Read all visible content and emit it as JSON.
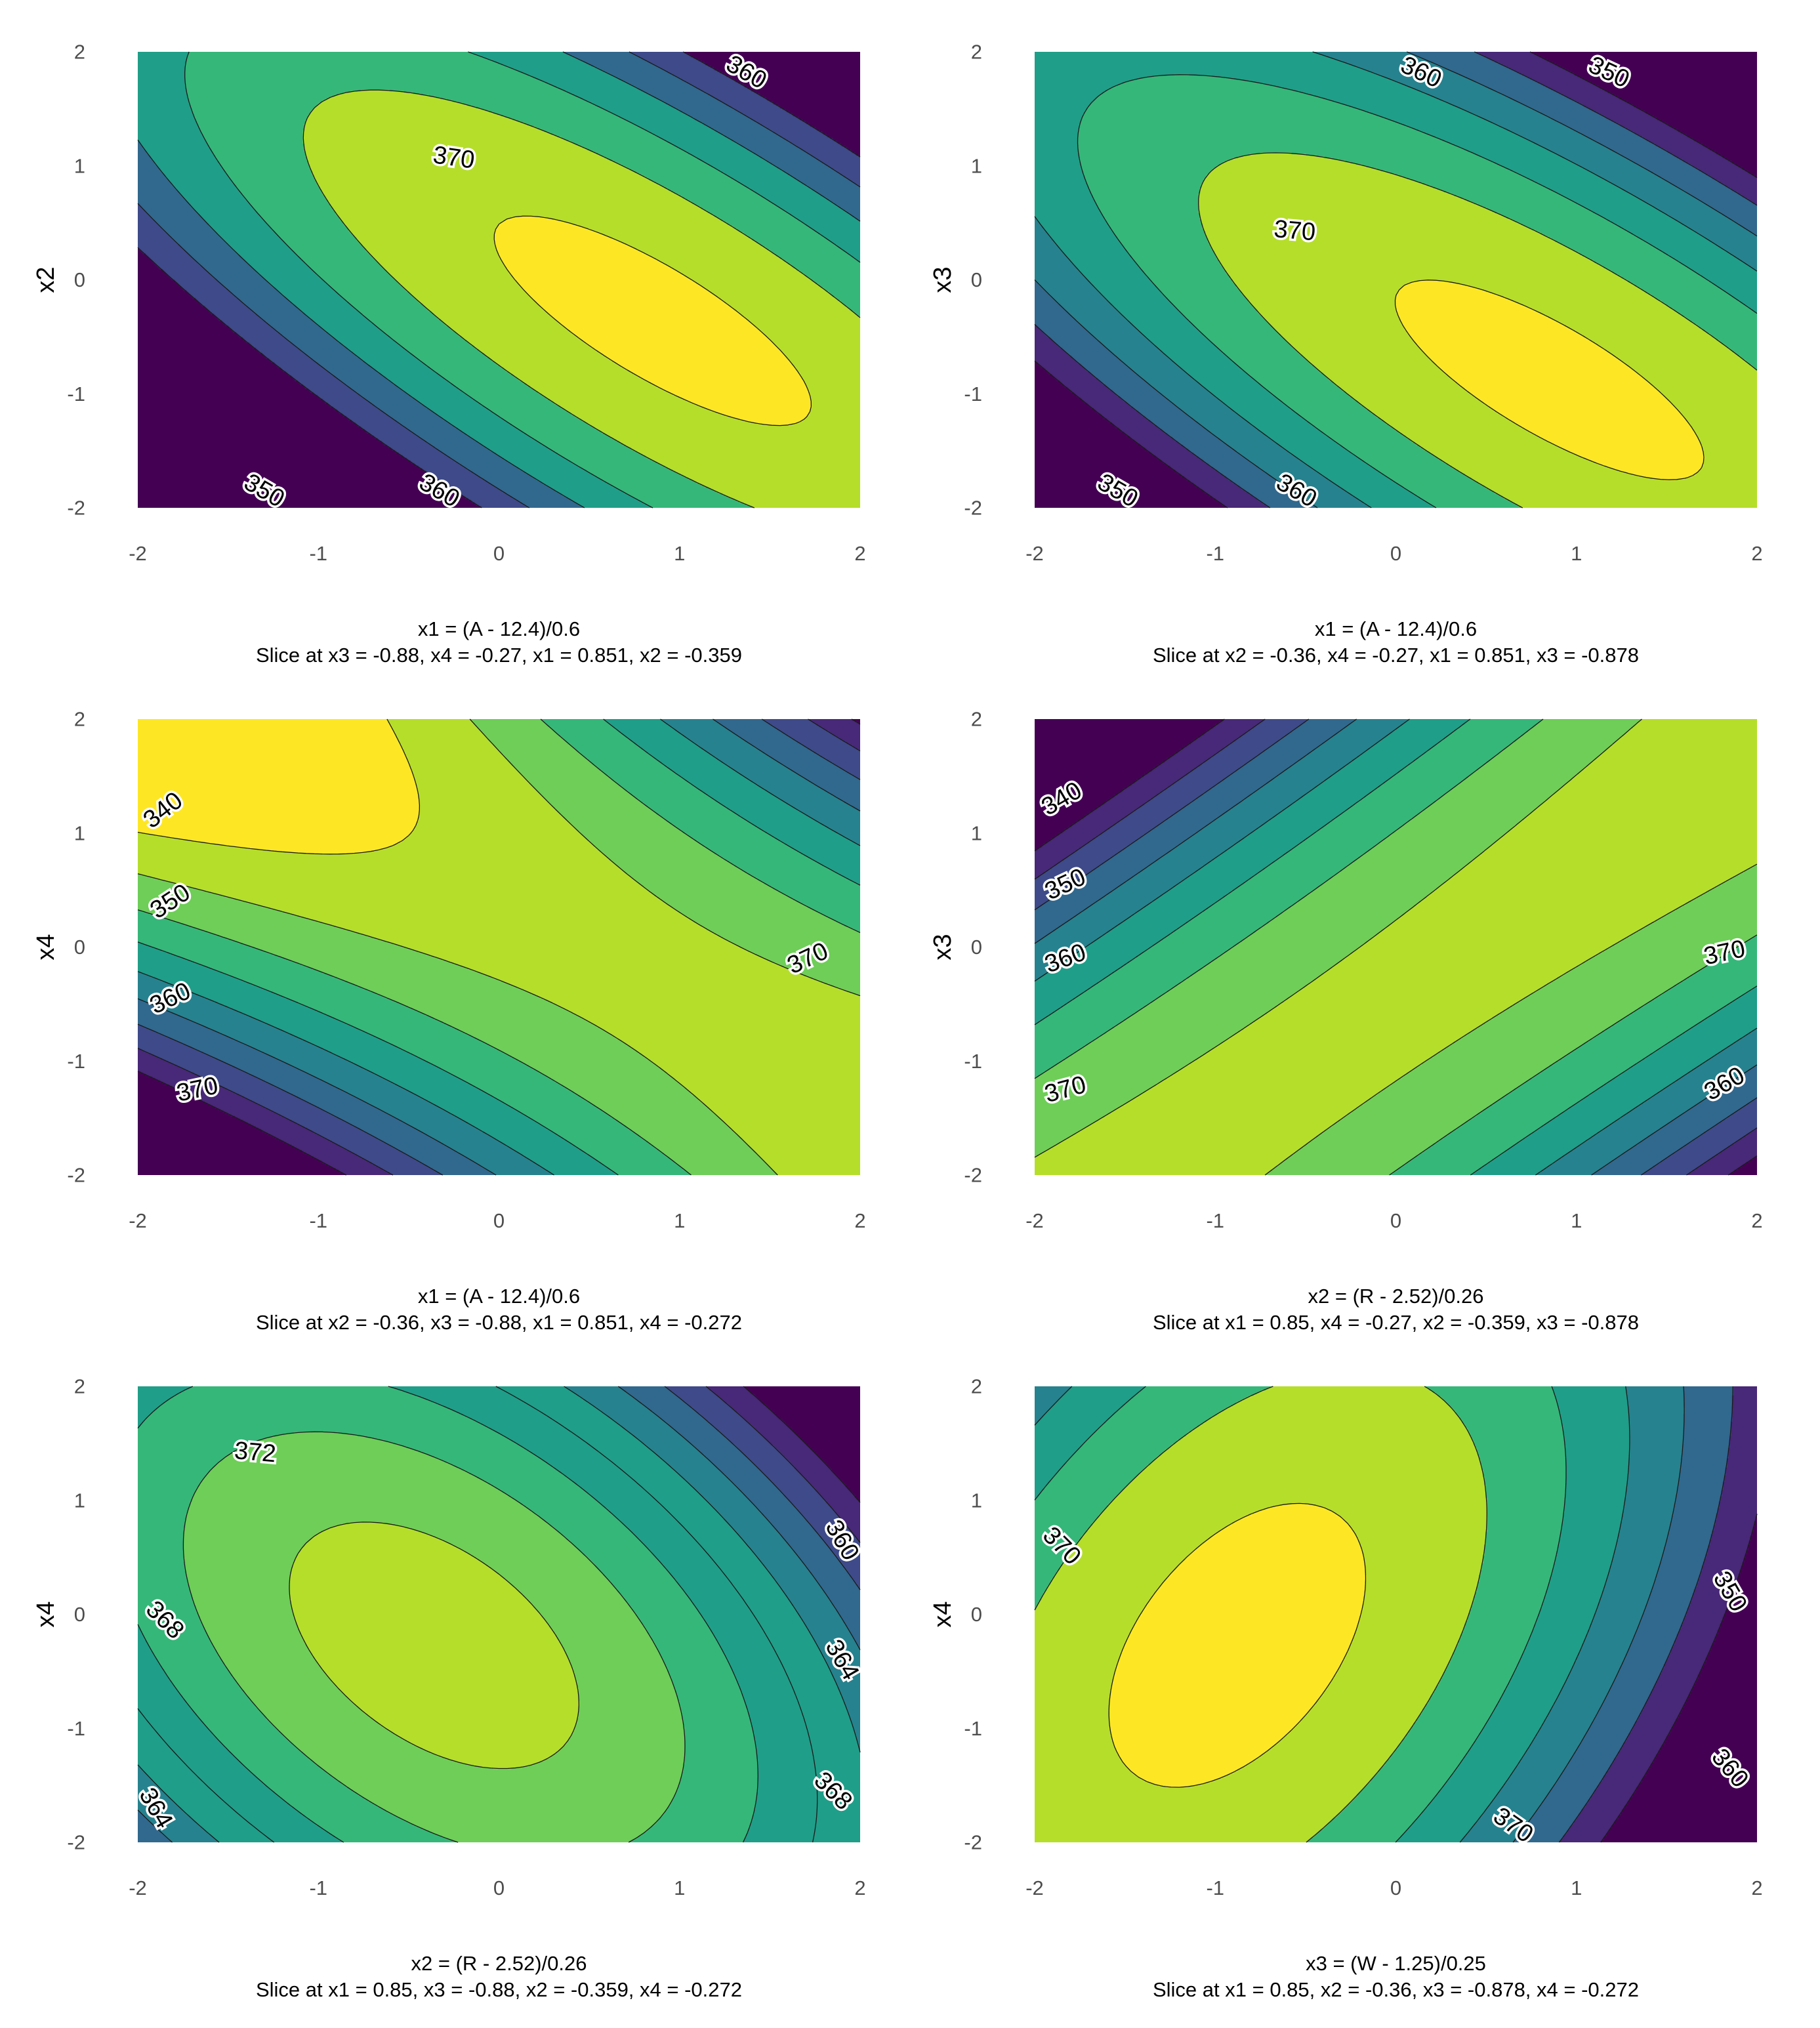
{
  "chart_data": [
    {
      "type": "contour",
      "xlabel": "x1 = (A - 12.4)/0.6",
      "ylabel": "x2",
      "subtitle": "Slice at x3 = -0.88, x4 = -0.27, x1 = 0.851, x2 = -0.359",
      "xlim": [
        -2,
        2
      ],
      "ylim": [
        -2,
        2
      ],
      "xticks": [
        "-2",
        "-1",
        "0",
        "1",
        "2"
      ],
      "yticks": [
        "-2",
        "-1",
        "0",
        "1",
        "2"
      ],
      "levels": [
        345,
        350,
        355,
        360,
        365,
        370
      ],
      "level_labels": [
        {
          "text": "370",
          "x": -0.25,
          "y": 1.07,
          "angle": 8
        },
        {
          "text": "360",
          "x": 1.37,
          "y": 1.82,
          "angle": 30
        },
        {
          "text": "350",
          "x": -1.3,
          "y": -1.85,
          "angle": 30
        },
        {
          "text": "360",
          "x": -0.33,
          "y": -1.85,
          "angle": 30
        }
      ],
      "model": {
        "c": 371.3,
        "lx": 0.0,
        "ly": 0.0,
        "qxx": -4.6,
        "qyy": -4.2,
        "qxy": -7.0,
        "cx": 0.851,
        "cy": -0.359
      }
    },
    {
      "type": "contour",
      "xlabel": "x1 = (A - 12.4)/0.6",
      "ylabel": "x3",
      "subtitle": "Slice at x2 = -0.36, x4 = -0.27, x1 = 0.851, x3 = -0.878",
      "xlim": [
        -2,
        2
      ],
      "ylim": [
        -2,
        2
      ],
      "xticks": [
        "-2",
        "-1",
        "0",
        "1",
        "2"
      ],
      "yticks": [
        "-2",
        "-1",
        "0",
        "1",
        "2"
      ],
      "levels": [
        340,
        345,
        350,
        355,
        360,
        365,
        370
      ],
      "level_labels": [
        {
          "text": "370",
          "x": -0.56,
          "y": 0.43,
          "angle": 5
        },
        {
          "text": "360",
          "x": 0.14,
          "y": 1.82,
          "angle": 25
        },
        {
          "text": "350",
          "x": 1.18,
          "y": 1.82,
          "angle": 25
        },
        {
          "text": "350",
          "x": -1.54,
          "y": -1.85,
          "angle": 30
        },
        {
          "text": "360",
          "x": -0.55,
          "y": -1.85,
          "angle": 30
        }
      ],
      "model": {
        "c": 371.2,
        "lx": 0.0,
        "ly": 0.0,
        "qxx": -4.2,
        "qyy": -4.0,
        "qxy": -6.4,
        "cx": 0.851,
        "cy": -0.878
      }
    },
    {
      "type": "contour",
      "xlabel": "x1 = (A - 12.4)/0.6",
      "ylabel": "x4",
      "subtitle": "Slice at x2 = -0.36, x3 = -0.88, x1 = 0.851, x4 = -0.272",
      "xlim": [
        -2,
        2
      ],
      "ylim": [
        -2,
        2
      ],
      "xticks": [
        "-2",
        "-1",
        "0",
        "1",
        "2"
      ],
      "yticks": [
        "-2",
        "-1",
        "0",
        "1",
        "2"
      ],
      "levels": [
        335,
        340,
        345,
        350,
        355,
        360,
        365,
        370,
        375
      ],
      "level_labels": [
        {
          "text": "340",
          "x": -1.86,
          "y": 1.2,
          "angle": -38
        },
        {
          "text": "350",
          "x": -1.82,
          "y": 0.4,
          "angle": -33
        },
        {
          "text": "360",
          "x": -1.82,
          "y": -0.45,
          "angle": -25
        },
        {
          "text": "370",
          "x": -1.67,
          "y": -1.25,
          "angle": -12
        },
        {
          "text": "370",
          "x": 1.71,
          "y": -0.1,
          "angle": -25
        }
      ],
      "model": {
        "c": 371.7,
        "lx": 0.0,
        "ly": 0.0,
        "qxx": -2.2,
        "qyy": -3.1,
        "qxy": -7.2,
        "cx": 0.851,
        "cy": -0.272
      }
    },
    {
      "type": "contour",
      "xlabel": "x2 = (R - 2.52)/0.26",
      "ylabel": "x3",
      "subtitle": "Slice at x1 = 0.85, x4 = -0.27, x2 = -0.359, x3 = -0.878",
      "xlim": [
        -2,
        2
      ],
      "ylim": [
        -2,
        2
      ],
      "xticks": [
        "-2",
        "-1",
        "0",
        "1",
        "2"
      ],
      "yticks": [
        "-2",
        "-1",
        "0",
        "1",
        "2"
      ],
      "levels": [
        335,
        340,
        345,
        350,
        355,
        360,
        365,
        370,
        375
      ],
      "level_labels": [
        {
          "text": "340",
          "x": -1.85,
          "y": 1.3,
          "angle": -30
        },
        {
          "text": "350",
          "x": -1.83,
          "y": 0.55,
          "angle": -25
        },
        {
          "text": "360",
          "x": -1.83,
          "y": -0.1,
          "angle": -20
        },
        {
          "text": "370",
          "x": -1.83,
          "y": -1.25,
          "angle": -15
        },
        {
          "text": "370",
          "x": 1.82,
          "y": -0.05,
          "angle": -12
        },
        {
          "text": "360",
          "x": 1.82,
          "y": -1.2,
          "angle": -30
        }
      ],
      "model": {
        "c": 371.4,
        "lx": 0.0,
        "ly": 0.0,
        "qxx": -3.4,
        "qyy": -2.9,
        "qxy": 6.6,
        "cx": -0.359,
        "cy": -0.878
      }
    },
    {
      "type": "contour",
      "xlabel": "x2 = (R - 2.52)/0.26",
      "ylabel": "x4",
      "subtitle": "Slice at x1 = 0.85, x3 = -0.88, x2 = -0.359, x4 = -0.272",
      "xlim": [
        -2,
        2
      ],
      "ylim": [
        -2,
        2
      ],
      "xticks": [
        "-2",
        "-1",
        "0",
        "1",
        "2"
      ],
      "yticks": [
        "-2",
        "-1",
        "0",
        "1",
        "2"
      ],
      "levels": [
        354,
        356,
        358,
        360,
        362,
        364,
        366,
        368,
        370,
        372
      ],
      "level_labels": [
        {
          "text": "372",
          "x": -1.35,
          "y": 1.42,
          "angle": 5
        },
        {
          "text": "360",
          "x": 1.9,
          "y": 0.65,
          "angle": 60
        },
        {
          "text": "364",
          "x": 1.9,
          "y": -0.4,
          "angle": 60
        },
        {
          "text": "368",
          "x": 1.85,
          "y": -1.55,
          "angle": 45
        },
        {
          "text": "368",
          "x": -1.85,
          "y": -0.05,
          "angle": 45
        },
        {
          "text": "364",
          "x": -1.9,
          "y": -1.7,
          "angle": 60
        }
      ],
      "model": {
        "c": 371.0,
        "lx": 0.0,
        "ly": 0.0,
        "qxx": -2.0,
        "qyy": -1.1,
        "qxy": -1.4,
        "cx": -0.359,
        "cy": -0.272
      }
    },
    {
      "type": "contour",
      "xlabel": "x3 = (W - 1.25)/0.25",
      "ylabel": "x4",
      "subtitle": "Slice at x1 = 0.85, x2 = -0.36, x3 = -0.878, x4 = -0.272",
      "xlim": [
        -2,
        2
      ],
      "ylim": [
        -2,
        2
      ],
      "xticks": [
        "-2",
        "-1",
        "0",
        "1",
        "2"
      ],
      "yticks": [
        "-2",
        "-1",
        "0",
        "1",
        "2"
      ],
      "levels": [
        340,
        345,
        350,
        355,
        360,
        365,
        370
      ],
      "level_labels": [
        {
          "text": "370",
          "x": -1.85,
          "y": 0.6,
          "angle": 45
        },
        {
          "text": "350",
          "x": 1.85,
          "y": 0.2,
          "angle": 60
        },
        {
          "text": "360",
          "x": 1.85,
          "y": -1.35,
          "angle": 50
        },
        {
          "text": "370",
          "x": 0.65,
          "y": -1.85,
          "angle": 35
        }
      ],
      "model": {
        "c": 371.8,
        "lx": 0.0,
        "ly": 0.0,
        "qxx": -4.6,
        "qyy": -1.5,
        "qxy": 2.5,
        "cx": -0.878,
        "cy": -0.272
      }
    }
  ],
  "colors": {
    "viridis": [
      "#440154",
      "#482878",
      "#3e4a89",
      "#31688e",
      "#26828e",
      "#1f9e89",
      "#35b779",
      "#6ece58",
      "#b5de2b",
      "#fde725"
    ],
    "contour_line": "#1a1a1a",
    "background": "#ffffff"
  }
}
